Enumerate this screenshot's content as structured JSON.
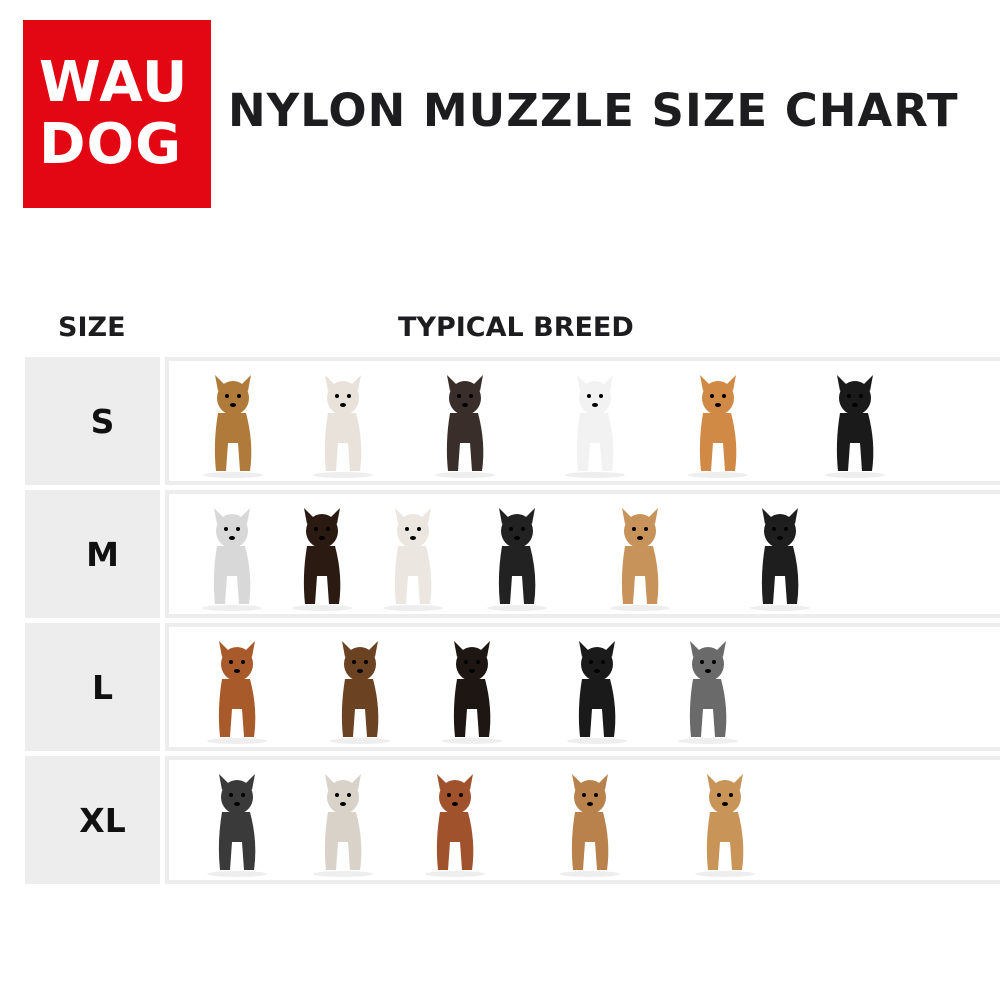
{
  "brand": {
    "logo_line1": "WAU",
    "logo_line2": "DOG",
    "color": "#e30613"
  },
  "title": "NYLON MUZZLE SIZE CHART",
  "headers": {
    "size": "SIZE",
    "breed": "TYPICAL BREED"
  },
  "rows": [
    {
      "size": "S",
      "dogs": [
        {
          "icon": "yorkshire-terrier-photo",
          "color": "#b07a3a"
        },
        {
          "icon": "maltipoo-photo",
          "color": "#e8e2da"
        },
        {
          "icon": "chihuahua-photo",
          "color": "#3a2e2a"
        },
        {
          "icon": "white-poodle-photo",
          "color": "#f2f2f2"
        },
        {
          "icon": "pomeranian-photo",
          "color": "#d08a45"
        },
        {
          "icon": "cocker-spaniel-photo",
          "color": "#1a1a1a"
        }
      ]
    },
    {
      "size": "M",
      "dogs": [
        {
          "icon": "dalmatian-photo",
          "color": "#d8d8d8"
        },
        {
          "icon": "miniature-pinscher-photo",
          "color": "#2a1a12"
        },
        {
          "icon": "bull-terrier-photo",
          "color": "#ece6e0"
        },
        {
          "icon": "border-collie-photo",
          "color": "#222222"
        },
        {
          "icon": "shar-pei-photo",
          "color": "#c8935a"
        },
        {
          "icon": "black-poodle-photo",
          "color": "#1e1e1e"
        }
      ]
    },
    {
      "size": "L",
      "dogs": [
        {
          "icon": "boxer-photo",
          "color": "#a85a2a"
        },
        {
          "icon": "german-shepherd-photo",
          "color": "#6b4222"
        },
        {
          "icon": "rottweiler-photo",
          "color": "#1e1612"
        },
        {
          "icon": "cane-corso-photo",
          "color": "#1a1a1a"
        },
        {
          "icon": "alaskan-malamute-photo",
          "color": "#6a6a6a"
        }
      ]
    },
    {
      "size": "XL",
      "dogs": [
        {
          "icon": "great-dane-photo",
          "color": "#3a3a3a"
        },
        {
          "icon": "anatolian-shepherd-photo",
          "color": "#d8d2c8"
        },
        {
          "icon": "saint-bernard-photo",
          "color": "#a0522d"
        },
        {
          "icon": "bullmastiff-photo",
          "color": "#b9824d"
        },
        {
          "icon": "mastiff-photo",
          "color": "#c89458"
        }
      ]
    }
  ]
}
